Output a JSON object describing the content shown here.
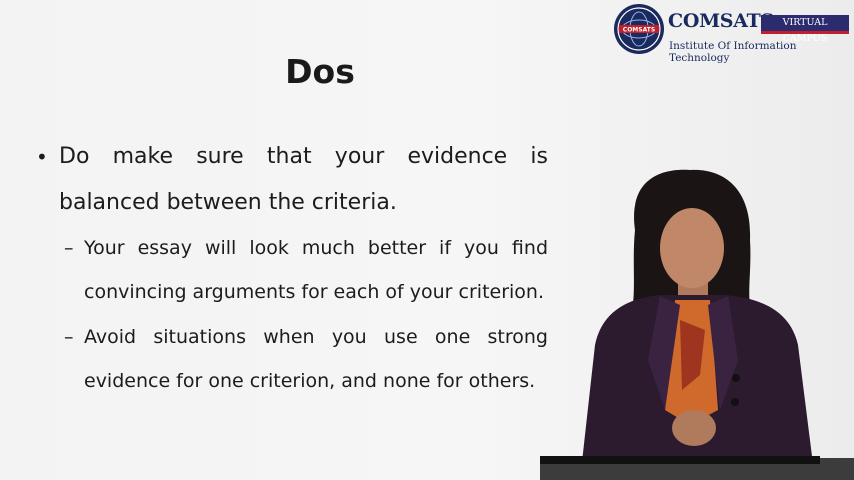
{
  "slide": {
    "title": "Dos",
    "bullet": {
      "marker": "•",
      "text": "Do make sure that your evidence is balanced between the criteria."
    },
    "sub_bullets": [
      {
        "marker": "–",
        "text": "Your essay will look much better if you find convincing arguments for each of your criterion."
      },
      {
        "marker": "–",
        "text": "Avoid situations when you use one strong evidence for one criterion, and none for others."
      }
    ]
  },
  "logo": {
    "name": "COMSATS",
    "badge": "VIRTUAL CAMPUS",
    "subtitle": "Institute Of Information Technology",
    "seal_text": "COMSATS",
    "colors": {
      "navy": "#1b2a5e",
      "red": "#c21f2a"
    }
  },
  "presenter": {
    "icon": "presenter-figure"
  }
}
